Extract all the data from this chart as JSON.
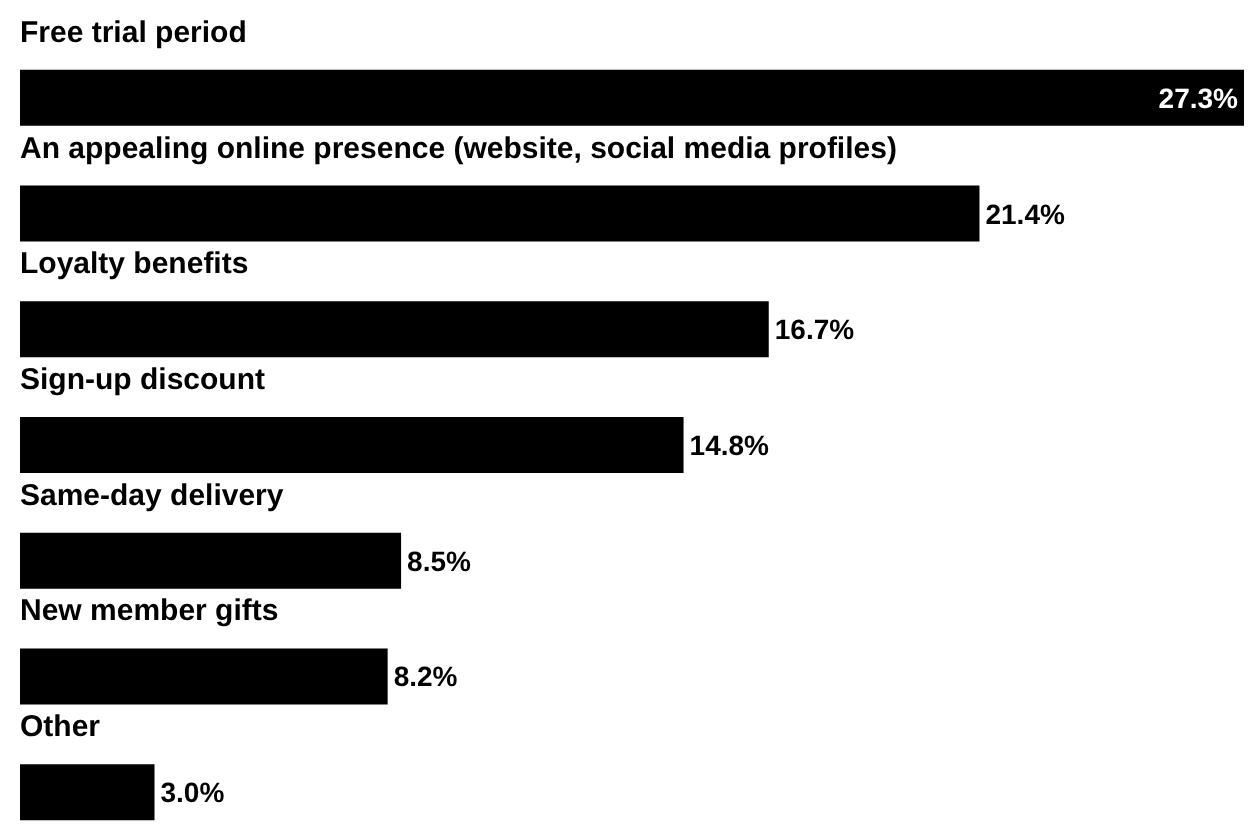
{
  "chart_data": {
    "type": "bar",
    "orientation": "horizontal",
    "categories": [
      "Free trial period",
      "An appealing online presence (website, social media profiles)",
      "Loyalty benefits",
      "Sign-up discount",
      "Same-day delivery",
      "New member gifts",
      "Other"
    ],
    "values": [
      27.3,
      21.4,
      16.7,
      14.8,
      8.5,
      8.2,
      3.0
    ],
    "value_labels": [
      "27.3%",
      "21.4%",
      "16.7%",
      "14.8%",
      "8.5%",
      "8.2%",
      "3.0%"
    ],
    "color": "#000000",
    "tick_labels": false
  }
}
